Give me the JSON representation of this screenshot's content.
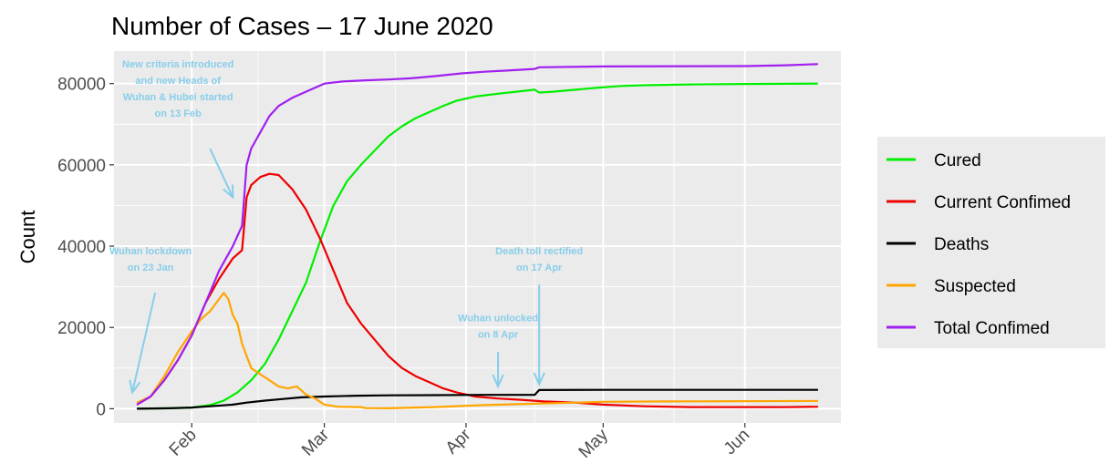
{
  "chart_data": {
    "type": "line",
    "title": "Number of Cases – 17 June 2020",
    "xlabel": "",
    "ylabel": "Count",
    "xlim": [
      "2020-01-15",
      "2020-06-22"
    ],
    "ylim": [
      -3500,
      88000
    ],
    "y_ticks": [
      0,
      20000,
      40000,
      60000,
      80000
    ],
    "y_tick_labels": [
      "0",
      "20000",
      "40000",
      "60000",
      "80000"
    ],
    "x_ticks": [
      "2020-02-01",
      "2020-03-01",
      "2020-04-01",
      "2020-05-01",
      "2020-06-01"
    ],
    "x_tick_labels": [
      "Feb",
      "Mar",
      "Apr",
      "May",
      "Jun"
    ],
    "grid": true,
    "legend_position": "right",
    "series": [
      {
        "name": "Cured",
        "color": "#00ee00",
        "points": [
          [
            "2020-01-20",
            0
          ],
          [
            "2020-01-27",
            100
          ],
          [
            "2020-02-01",
            300
          ],
          [
            "2020-02-05",
            900
          ],
          [
            "2020-02-08",
            2000
          ],
          [
            "2020-02-11",
            4000
          ],
          [
            "2020-02-14",
            7000
          ],
          [
            "2020-02-17",
            11000
          ],
          [
            "2020-02-20",
            17000
          ],
          [
            "2020-02-23",
            24000
          ],
          [
            "2020-02-26",
            31000
          ],
          [
            "2020-02-29",
            41000
          ],
          [
            "2020-03-03",
            50000
          ],
          [
            "2020-03-06",
            56000
          ],
          [
            "2020-03-09",
            60000
          ],
          [
            "2020-03-12",
            63500
          ],
          [
            "2020-03-15",
            67000
          ],
          [
            "2020-03-18",
            69500
          ],
          [
            "2020-03-21",
            71500
          ],
          [
            "2020-03-24",
            73000
          ],
          [
            "2020-03-27",
            74500
          ],
          [
            "2020-03-30",
            75800
          ],
          [
            "2020-04-03",
            76800
          ],
          [
            "2020-04-08",
            77500
          ],
          [
            "2020-04-12",
            78000
          ],
          [
            "2020-04-16",
            78500
          ],
          [
            "2020-04-17",
            77800
          ],
          [
            "2020-04-20",
            78000
          ],
          [
            "2020-04-25",
            78500
          ],
          [
            "2020-04-30",
            79000
          ],
          [
            "2020-05-05",
            79400
          ],
          [
            "2020-05-10",
            79600
          ],
          [
            "2020-05-20",
            79800
          ],
          [
            "2020-06-01",
            79900
          ],
          [
            "2020-06-17",
            80000
          ]
        ]
      },
      {
        "name": "Current Confimed",
        "color": "#ee0000",
        "points": [
          [
            "2020-01-20",
            1000
          ],
          [
            "2020-01-23",
            3000
          ],
          [
            "2020-01-26",
            7000
          ],
          [
            "2020-01-29",
            12000
          ],
          [
            "2020-02-01",
            18000
          ],
          [
            "2020-02-04",
            26000
          ],
          [
            "2020-02-07",
            32000
          ],
          [
            "2020-02-10",
            37000
          ],
          [
            "2020-02-12",
            39000
          ],
          [
            "2020-02-13",
            52000
          ],
          [
            "2020-02-14",
            55000
          ],
          [
            "2020-02-16",
            57000
          ],
          [
            "2020-02-18",
            57800
          ],
          [
            "2020-02-20",
            57500
          ],
          [
            "2020-02-23",
            54000
          ],
          [
            "2020-02-26",
            49000
          ],
          [
            "2020-02-29",
            42000
          ],
          [
            "2020-03-03",
            34000
          ],
          [
            "2020-03-06",
            26000
          ],
          [
            "2020-03-09",
            21000
          ],
          [
            "2020-03-12",
            17000
          ],
          [
            "2020-03-15",
            13000
          ],
          [
            "2020-03-18",
            10000
          ],
          [
            "2020-03-21",
            8000
          ],
          [
            "2020-03-24",
            6500
          ],
          [
            "2020-03-27",
            5000
          ],
          [
            "2020-03-30",
            4000
          ],
          [
            "2020-04-03",
            3000
          ],
          [
            "2020-04-08",
            2500
          ],
          [
            "2020-04-13",
            2200
          ],
          [
            "2020-04-18",
            1800
          ],
          [
            "2020-04-25",
            1500
          ],
          [
            "2020-05-01",
            1000
          ],
          [
            "2020-05-10",
            600
          ],
          [
            "2020-05-20",
            400
          ],
          [
            "2020-06-01",
            400
          ],
          [
            "2020-06-10",
            400
          ],
          [
            "2020-06-17",
            500
          ]
        ]
      },
      {
        "name": "Deaths",
        "color": "#000000",
        "points": [
          [
            "2020-01-20",
            0
          ],
          [
            "2020-01-27",
            100
          ],
          [
            "2020-02-01",
            300
          ],
          [
            "2020-02-05",
            600
          ],
          [
            "2020-02-10",
            1000
          ],
          [
            "2020-02-13",
            1500
          ],
          [
            "2020-02-17",
            2000
          ],
          [
            "2020-02-21",
            2400
          ],
          [
            "2020-02-25",
            2800
          ],
          [
            "2020-03-01",
            3000
          ],
          [
            "2020-03-08",
            3200
          ],
          [
            "2020-03-15",
            3300
          ],
          [
            "2020-03-25",
            3350
          ],
          [
            "2020-04-05",
            3400
          ],
          [
            "2020-04-16",
            3400
          ],
          [
            "2020-04-17",
            4600
          ],
          [
            "2020-05-01",
            4640
          ],
          [
            "2020-06-17",
            4640
          ]
        ]
      },
      {
        "name": "Suspected",
        "color": "#ffa500",
        "points": [
          [
            "2020-01-20",
            1500
          ],
          [
            "2020-01-23",
            3000
          ],
          [
            "2020-01-26",
            8000
          ],
          [
            "2020-01-29",
            14000
          ],
          [
            "2020-02-01",
            19000
          ],
          [
            "2020-02-03",
            22000
          ],
          [
            "2020-02-05",
            24000
          ],
          [
            "2020-02-07",
            27000
          ],
          [
            "2020-02-08",
            28500
          ],
          [
            "2020-02-09",
            27000
          ],
          [
            "2020-02-10",
            23000
          ],
          [
            "2020-02-11",
            21000
          ],
          [
            "2020-02-12",
            16000
          ],
          [
            "2020-02-13",
            13000
          ],
          [
            "2020-02-14",
            10000
          ],
          [
            "2020-02-16",
            8500
          ],
          [
            "2020-02-18",
            7000
          ],
          [
            "2020-02-20",
            5500
          ],
          [
            "2020-02-22",
            5000
          ],
          [
            "2020-02-24",
            5500
          ],
          [
            "2020-02-26",
            3500
          ],
          [
            "2020-02-28",
            2500
          ],
          [
            "2020-03-01",
            1000
          ],
          [
            "2020-03-04",
            500
          ],
          [
            "2020-03-09",
            400
          ],
          [
            "2020-03-10",
            150
          ],
          [
            "2020-03-15",
            100
          ],
          [
            "2020-03-25",
            400
          ],
          [
            "2020-04-05",
            900
          ],
          [
            "2020-04-15",
            1200
          ],
          [
            "2020-04-25",
            1500
          ],
          [
            "2020-05-01",
            1700
          ],
          [
            "2020-05-15",
            1800
          ],
          [
            "2020-06-01",
            1850
          ],
          [
            "2020-06-17",
            1900
          ]
        ]
      },
      {
        "name": "Total Confimed",
        "color": "#a020f0",
        "points": [
          [
            "2020-01-20",
            1000
          ],
          [
            "2020-01-23",
            3000
          ],
          [
            "2020-01-26",
            7000
          ],
          [
            "2020-01-29",
            12000
          ],
          [
            "2020-02-01",
            18000
          ],
          [
            "2020-02-04",
            26000
          ],
          [
            "2020-02-07",
            34000
          ],
          [
            "2020-02-10",
            40000
          ],
          [
            "2020-02-12",
            45000
          ],
          [
            "2020-02-13",
            60000
          ],
          [
            "2020-02-14",
            64000
          ],
          [
            "2020-02-16",
            68000
          ],
          [
            "2020-02-18",
            72000
          ],
          [
            "2020-02-20",
            74500
          ],
          [
            "2020-02-23",
            76500
          ],
          [
            "2020-02-26",
            78000
          ],
          [
            "2020-03-01",
            80000
          ],
          [
            "2020-03-05",
            80500
          ],
          [
            "2020-03-10",
            80800
          ],
          [
            "2020-03-15",
            81000
          ],
          [
            "2020-03-20",
            81300
          ],
          [
            "2020-03-25",
            81800
          ],
          [
            "2020-03-31",
            82500
          ],
          [
            "2020-04-05",
            82900
          ],
          [
            "2020-04-10",
            83200
          ],
          [
            "2020-04-16",
            83600
          ],
          [
            "2020-04-17",
            84000
          ],
          [
            "2020-05-01",
            84200
          ],
          [
            "2020-06-01",
            84300
          ],
          [
            "2020-06-10",
            84500
          ],
          [
            "2020-06-17",
            84800
          ]
        ]
      }
    ],
    "annotations": [
      {
        "lines": [
          "New criteria introduced",
          "and new Heads of",
          "Wuhan & Hubei started",
          "on 13 Feb"
        ],
        "text_x": "2020-01-29",
        "text_y": 84000,
        "arrow_from": [
          "2020-02-05",
          64000
        ],
        "arrow_to": [
          "2020-02-10",
          52000
        ]
      },
      {
        "lines": [
          "Wuhan lockdown",
          "on 23 Jan"
        ],
        "text_x": "2020-01-23",
        "text_y": 38000,
        "arrow_from": [
          "2020-01-24",
          28500
        ],
        "arrow_to": [
          "2020-01-19",
          4000
        ]
      },
      {
        "lines": [
          "Death toll rectified",
          "on 17 Apr"
        ],
        "text_x": "2020-04-17",
        "text_y": 38000,
        "arrow_from": [
          "2020-04-17",
          30500
        ],
        "arrow_to": [
          "2020-04-17",
          6000
        ]
      },
      {
        "lines": [
          "Wuhan unlocked",
          "on 8 Apr"
        ],
        "text_x": "2020-04-08",
        "text_y": 21500,
        "arrow_from": [
          "2020-04-08",
          14000
        ],
        "arrow_to": [
          "2020-04-08",
          5500
        ]
      }
    ]
  }
}
